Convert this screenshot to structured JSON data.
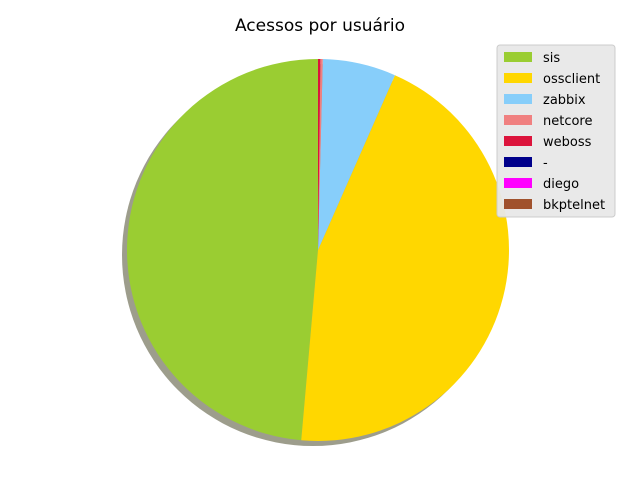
{
  "chart_data": {
    "type": "pie",
    "title": "Acessos por usuário",
    "shadow": true,
    "legend_position": "top-right",
    "slices": [
      {
        "label": "sis",
        "value": 48.6,
        "color": "#9ACD32"
      },
      {
        "label": "ossclient",
        "value": 44.8,
        "color": "#FFD700"
      },
      {
        "label": "zabbix",
        "value": 6.2,
        "color": "#87CEFA"
      },
      {
        "label": "netcore",
        "value": 0.2,
        "color": "#F08080"
      },
      {
        "label": "weboss",
        "value": 0.2,
        "color": "#DC143C"
      },
      {
        "label": "-",
        "value": 0.0,
        "color": "#00008B"
      },
      {
        "label": "diego",
        "value": 0.0,
        "color": "#FF00FF"
      },
      {
        "label": "bkptelnet",
        "value": 0.0,
        "color": "#A0522D"
      }
    ]
  }
}
